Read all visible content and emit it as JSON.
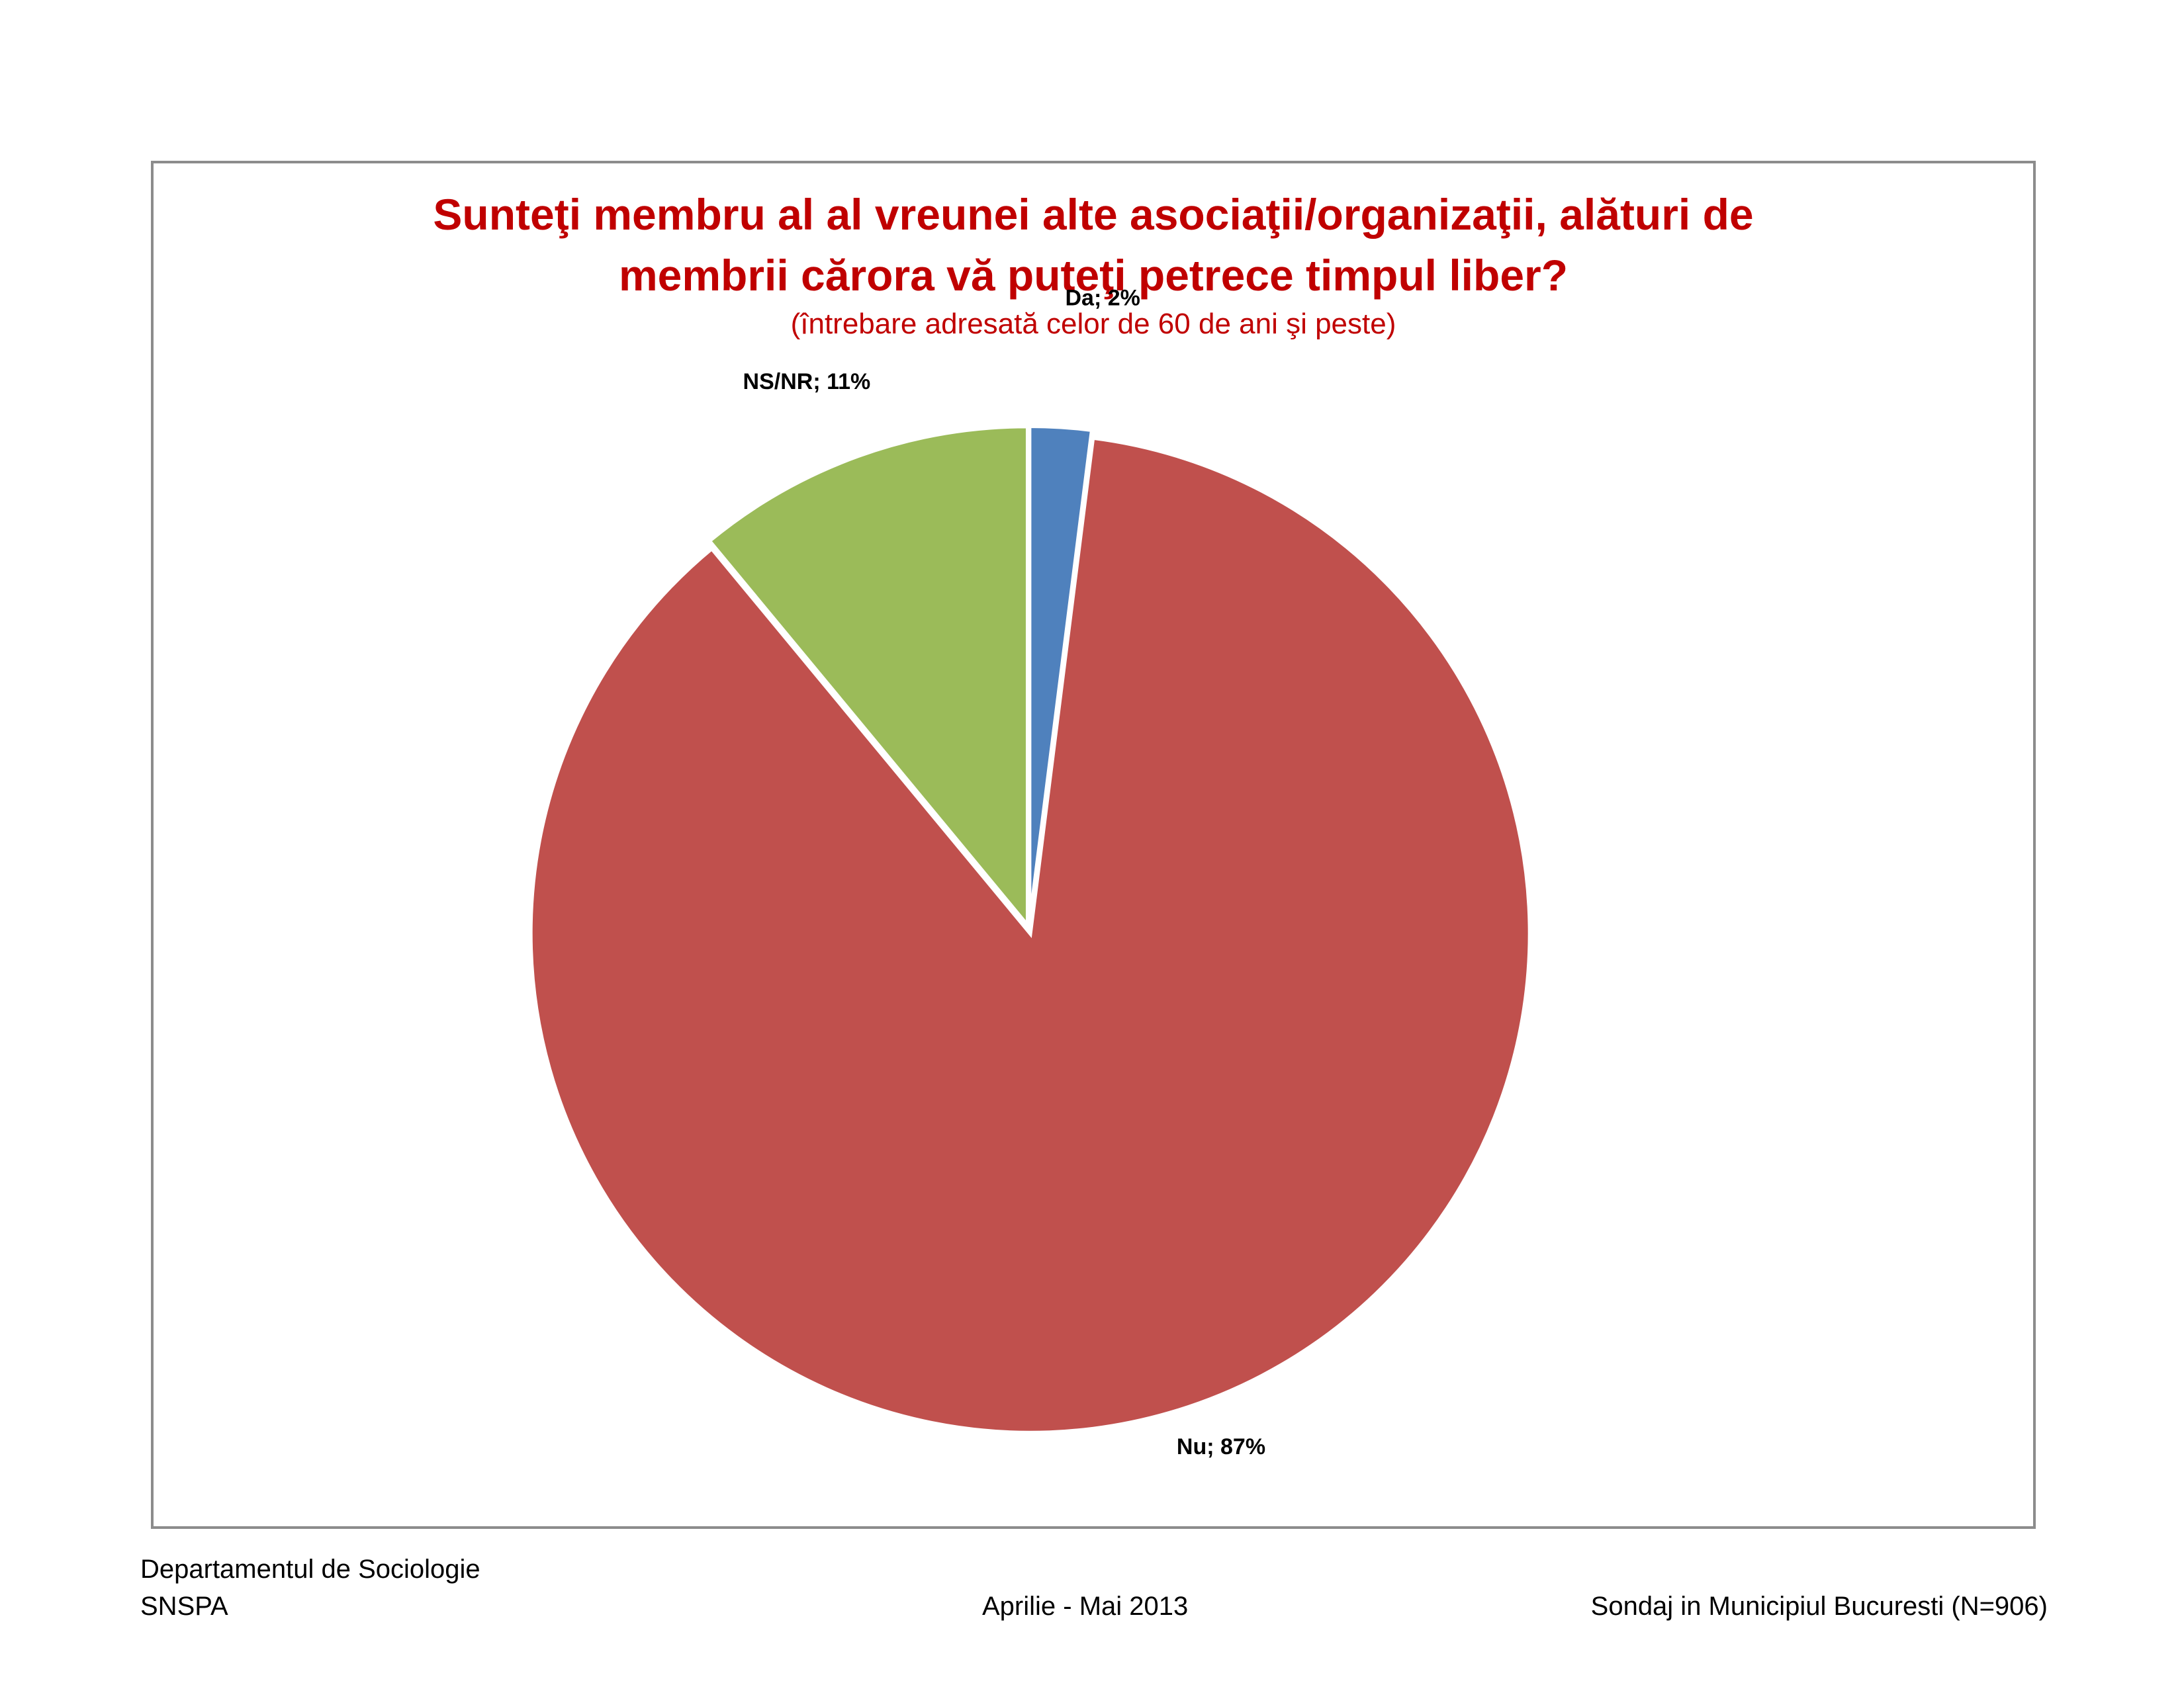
{
  "chart_data": {
    "type": "pie",
    "title_line1": "Sunteţi membru al al vreunei alte asociaţii/organizaţii,  alături de",
    "title_line2": "membrii cărora vă puteţi petrece timpul liber?",
    "subtitle": "(întrebare adresată celor de 60 de ani şi peste)",
    "slices": [
      {
        "label": "Da",
        "value": 2,
        "display": "Da; 2%",
        "color": "#4f81bd"
      },
      {
        "label": "Nu",
        "value": 87,
        "display": "Nu; 87%",
        "color": "#c0504d"
      },
      {
        "label": "NS/NR",
        "value": 11,
        "display": "NS/NR; 11%",
        "color": "#9bbb59"
      }
    ]
  },
  "footer": {
    "dept": "Departamentul de Sociologie",
    "org": "SNSPA",
    "period": "Aprilie - Mai 2013",
    "survey": "Sondaj in Municipiul Bucuresti (N=906)"
  }
}
